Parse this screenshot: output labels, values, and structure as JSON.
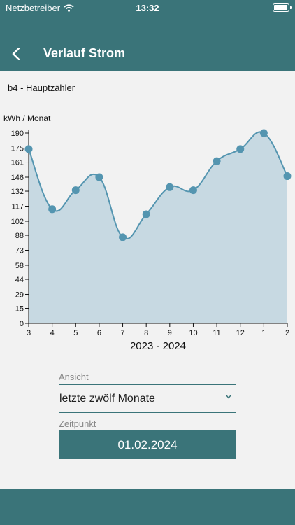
{
  "status_bar": {
    "carrier": "Netzbetreiber",
    "time": "13:32",
    "wifi_icon": "wifi-icon",
    "battery_icon": "battery-icon"
  },
  "header": {
    "title": "Verlauf Strom",
    "back_icon": "chevron-left-icon"
  },
  "meter_label": "b4 - Hauptzähler",
  "chart_data": {
    "type": "area",
    "ylabel": "kWh / Monat",
    "xlabel": "2023 - 2024",
    "categories": [
      "3",
      "4",
      "5",
      "6",
      "7",
      "8",
      "9",
      "10",
      "11",
      "12",
      "1",
      "2"
    ],
    "values": [
      174,
      114,
      133,
      146,
      86,
      109,
      136,
      133,
      162,
      174,
      190,
      147
    ],
    "y_ticks": [
      "0",
      "15",
      "29",
      "44",
      "58",
      "73",
      "88",
      "102",
      "117",
      "132",
      "146",
      "161",
      "175",
      "190"
    ],
    "ylim": [
      0,
      190
    ],
    "grid": false,
    "colors": {
      "line": "#5495b0",
      "fill": "#c7d9e2",
      "point": "#5495b0"
    }
  },
  "controls": {
    "view_label": "Ansicht",
    "view_value": "letzte zwölf Monate",
    "view_chevron_icon": "chevron-down-icon",
    "time_label": "Zeitpunkt",
    "date_value": "01.02.2024"
  },
  "colors": {
    "brand": "#3a7479",
    "background": "#f2f2f2"
  }
}
